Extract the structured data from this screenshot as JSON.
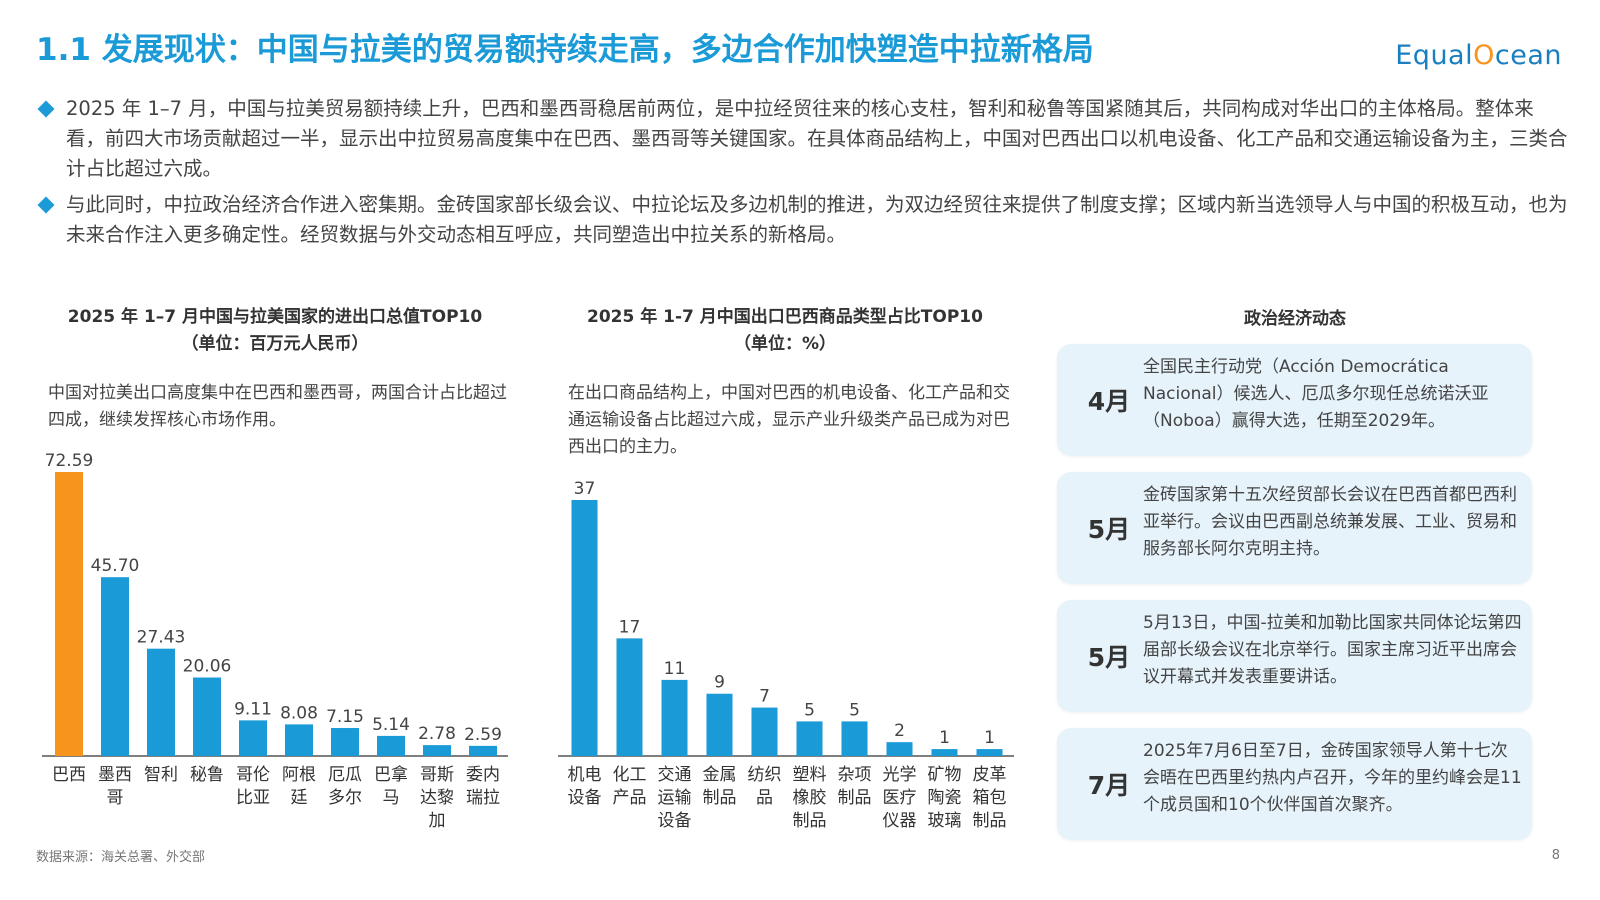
{
  "header": {
    "title": "1.1 发展现状：中国与拉美的贸易额持续走高，多边合作加快塑造中拉新格局",
    "logo_prefix": "Equal",
    "logo_o": "O",
    "logo_suffix": "cean"
  },
  "bullets": [
    "2025 年 1–7 月，中国与拉美贸易额持续上升，巴西和墨西哥稳居前两位，是中拉经贸往来的核心支柱，智利和秘鲁等国紧随其后，共同构成对华出口的主体格局。整体来看，前四大市场贡献超过一半，显示出中拉贸易高度集中在巴西、墨西哥等关键国家。在具体商品结构上，中国对巴西出口以机电设备、化工产品和交通运输设备为主，三类合计占比超过六成。",
    "与此同时，中拉政治经济合作进入密集期。金砖国家部长级会议、中拉论坛及多边机制的推进，为双边经贸往来提供了制度支撑；区域内新当选领导人与中国的积极互动，也为未来合作注入更多确定性。经贸数据与外交动态相互呼应，共同塑造出中拉关系的新格局。"
  ],
  "chart_data": [
    {
      "type": "bar",
      "title": "2025 年 1–7 月中国与拉美国家的进出口总值TOP10",
      "subtitle": "（单位：百万元人民币）",
      "description": "中国对拉美出口高度集中在巴西和墨西哥，两国合计占比超过四成，继续发挥核心市场作用。",
      "categories": [
        "巴西",
        "墨西哥",
        "智利",
        "秘鲁",
        "哥伦比亚",
        "阿根廷",
        "厄瓜多尔",
        "巴拿马",
        "哥斯达黎加",
        "委内瑞拉"
      ],
      "category_lines": [
        [
          "巴西"
        ],
        [
          "墨西",
          "哥"
        ],
        [
          "智利"
        ],
        [
          "秘鲁"
        ],
        [
          "哥伦",
          "比亚"
        ],
        [
          "阿根",
          "廷"
        ],
        [
          "厄瓜",
          "多尔"
        ],
        [
          "巴拿",
          "马"
        ],
        [
          "哥斯",
          "达黎",
          "加"
        ],
        [
          "委内",
          "瑞拉"
        ]
      ],
      "values": [
        72.59,
        45.7,
        27.43,
        20.06,
        9.11,
        8.08,
        7.15,
        5.14,
        2.78,
        2.59
      ],
      "value_labels": [
        "72.59",
        "45.70",
        "27.43",
        "20.06",
        "9.11",
        "8.08",
        "7.15",
        "5.14",
        "2.78",
        "2.59"
      ],
      "highlight_index": 0,
      "colors": {
        "bar": "#1a9ad6",
        "highlight": "#f7941d"
      }
    },
    {
      "type": "bar",
      "title": "2025 年 1-7 月中国出口巴西商品类型占比TOP10",
      "subtitle": "（单位：%）",
      "description": "在出口商品结构上，中国对巴西的机电设备、化工产品和交通运输设备占比超过六成，显示产业升级类产品已成为对巴西出口的主力。",
      "categories": [
        "机电设备",
        "化工产品",
        "交通运输设备",
        "金属制品",
        "纺织品",
        "塑料橡胶制品",
        "杂项制品",
        "光学医疗仪器",
        "矿物陶瓷玻璃",
        "皮革箱包制品"
      ],
      "category_lines": [
        [
          "机电",
          "设备"
        ],
        [
          "化工",
          "产品"
        ],
        [
          "交通",
          "运输",
          "设备"
        ],
        [
          "金属",
          "制品"
        ],
        [
          "纺织",
          "品"
        ],
        [
          "塑料",
          "橡胶",
          "制品"
        ],
        [
          "杂项",
          "制品"
        ],
        [
          "光学",
          "医疗",
          "仪器"
        ],
        [
          "矿物",
          "陶瓷",
          "玻璃"
        ],
        [
          "皮革",
          "箱包",
          "制品"
        ]
      ],
      "values": [
        37,
        17,
        11,
        9,
        7,
        5,
        5,
        2,
        1,
        1
      ],
      "value_labels": [
        "37",
        "17",
        "11",
        "9",
        "7",
        "5",
        "5",
        "2",
        "1",
        "1"
      ],
      "colors": {
        "bar": "#1a9ad6"
      }
    }
  ],
  "events": {
    "title": "政治经济动态",
    "items": [
      {
        "month": "4月",
        "text": "全国民主行动党（Acción Democrática Nacional）候选人、厄瓜多尔现任总统诺沃亚（Noboa）赢得大选，任期至2029年。"
      },
      {
        "month": "5月",
        "text": "金砖国家第十五次经贸部长会议在巴西首都巴西利亚举行。会议由巴西副总统兼发展、工业、贸易和服务部长阿尔克明主持。"
      },
      {
        "month": "5月",
        "text": "5月13日，中国-拉美和加勒比国家共同体论坛第四届部长级会议在北京举行。国家主席习近平出席会议开幕式并发表重要讲话。"
      },
      {
        "month": "7月",
        "text": "2025年7月6日至7日，金砖国家领导人第十七次会晤在巴西里约热内卢召开，今年的里约峰会是11个成员国和10个伙伴国首次聚齐。"
      }
    ]
  },
  "footer": {
    "source": "数据来源：海关总署、外交部",
    "page": "8"
  }
}
